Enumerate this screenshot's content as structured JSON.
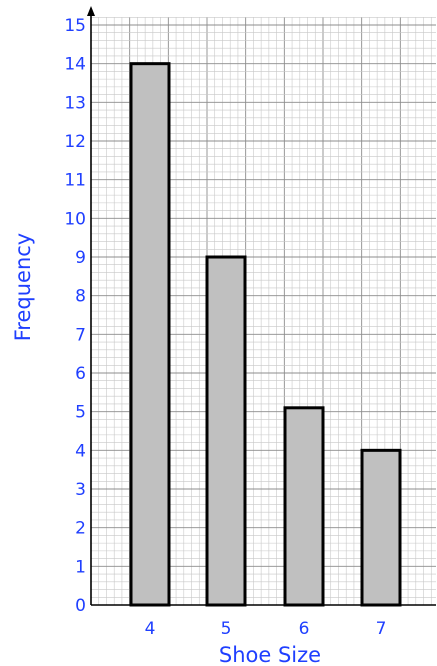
{
  "chart_data": {
    "type": "bar",
    "categories": [
      "4",
      "5",
      "6",
      "7"
    ],
    "values": [
      14,
      9,
      5.1,
      4
    ],
    "xlabel": "Shoe Size",
    "ylabel": "Frequency",
    "ylim": [
      0,
      15
    ],
    "yticks": [
      "0",
      "1",
      "2",
      "3",
      "4",
      "5",
      "6",
      "7",
      "8",
      "9",
      "10",
      "11",
      "12",
      "13",
      "14",
      "15"
    ],
    "grid": true,
    "grid_minor_per_unit": 5,
    "colors": {
      "bar_fill": "#c0c0c0",
      "bar_stroke": "#000000",
      "text": "#1f3fff",
      "grid_minor": "#c8c8c8",
      "grid_major": "#8c8c8c",
      "axis": "#000000"
    }
  }
}
